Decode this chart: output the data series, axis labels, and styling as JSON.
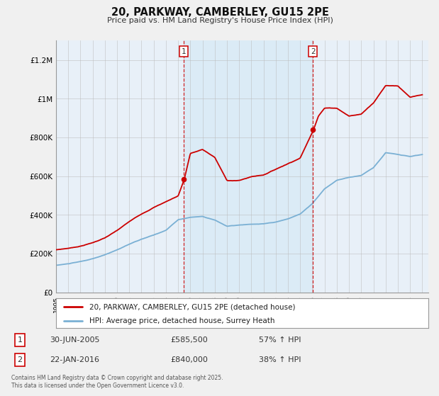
{
  "title": "20, PARKWAY, CAMBERLEY, GU15 2PE",
  "subtitle": "Price paid vs. HM Land Registry's House Price Index (HPI)",
  "xlim_start": 1995.0,
  "xlim_end": 2025.5,
  "ylim_min": 0,
  "ylim_max": 1300000,
  "yticks": [
    0,
    200000,
    400000,
    600000,
    800000,
    1000000,
    1200000
  ],
  "ytick_labels": [
    "£0",
    "£200K",
    "£400K",
    "£600K",
    "£800K",
    "£1M",
    "£1.2M"
  ],
  "xticks": [
    1995,
    1996,
    1997,
    1998,
    1999,
    2000,
    2001,
    2002,
    2003,
    2004,
    2005,
    2006,
    2007,
    2008,
    2009,
    2010,
    2011,
    2012,
    2013,
    2014,
    2015,
    2016,
    2017,
    2018,
    2019,
    2020,
    2021,
    2022,
    2023,
    2024,
    2025
  ],
  "red_color": "#cc0000",
  "blue_color": "#7ab0d4",
  "shaded_between_color": "#d8eaf6",
  "plot_bg_color": "#e8f0f8",
  "fig_bg_color": "#f0f0f0",
  "marker1_date": 2005.47,
  "marker2_date": 2016.05,
  "legend_line1": "20, PARKWAY, CAMBERLEY, GU15 2PE (detached house)",
  "legend_line2": "HPI: Average price, detached house, Surrey Heath",
  "info1_label": "1",
  "info1_date": "30-JUN-2005",
  "info1_price": "£585,500",
  "info1_hpi": "57% ↑ HPI",
  "info2_label": "2",
  "info2_date": "22-JAN-2016",
  "info2_price": "£840,000",
  "info2_hpi": "38% ↑ HPI",
  "footnote_line1": "Contains HM Land Registry data © Crown copyright and database right 2025.",
  "footnote_line2": "This data is licensed under the Open Government Licence v3.0."
}
